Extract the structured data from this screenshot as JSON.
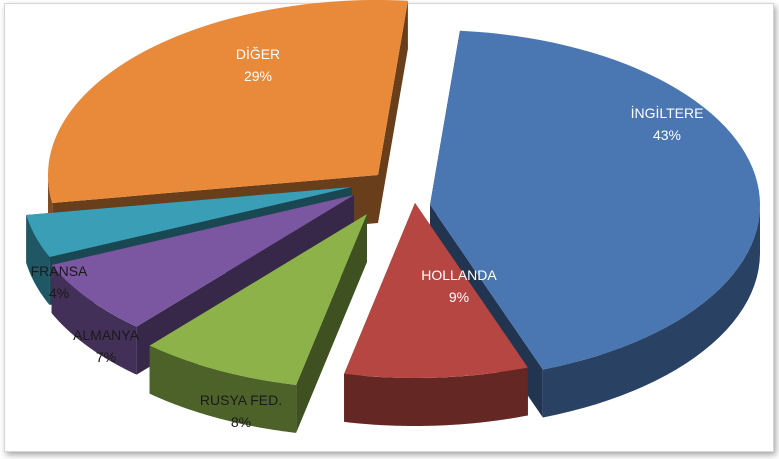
{
  "chart_data": {
    "type": "pie",
    "variant": "3d-exploded",
    "slices": [
      {
        "label": "İNGİLTERE",
        "percent_label": "43%",
        "value": 43,
        "color": "#4A76B2"
      },
      {
        "label": "HOLLANDA",
        "percent_label": "9%",
        "value": 9,
        "color": "#B64642"
      },
      {
        "label": "RUSYA FED.",
        "percent_label": "8%",
        "value": 8,
        "color": "#8CB249"
      },
      {
        "label": "ALMANYA",
        "percent_label": "7%",
        "value": 7,
        "color": "#7A57A0"
      },
      {
        "label": "FRANSA",
        "percent_label": "4%",
        "value": 4,
        "color": "#3A9FB6"
      },
      {
        "label": "DİĞER",
        "percent_label": "29%",
        "value": 29,
        "color": "#E9893A"
      }
    ]
  }
}
